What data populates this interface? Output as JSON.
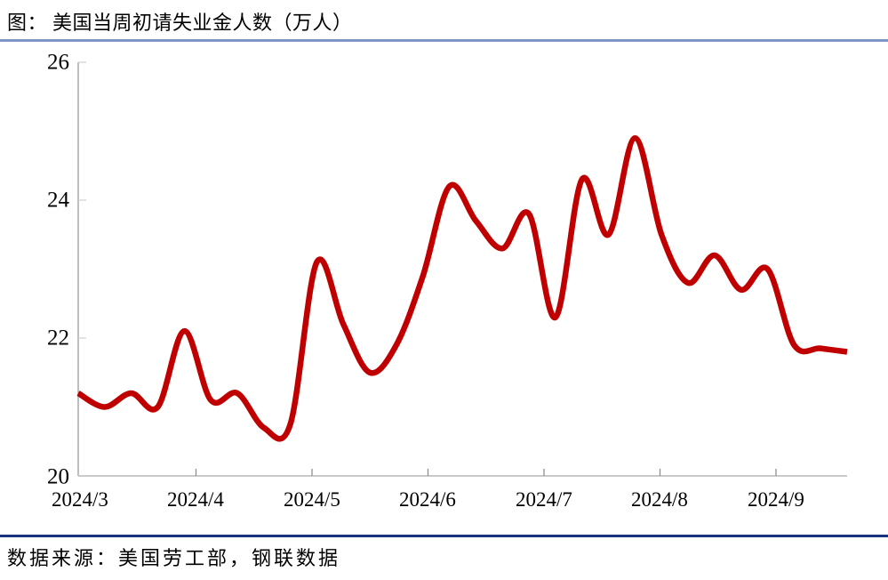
{
  "page": {
    "title": "图： 美国当周初请失业金人数（万人）",
    "source": "数据来源：美国劳工部，钢联数据"
  },
  "chart_data": {
    "type": "line",
    "title": "图： 美国当周初请失业金人数（万人）",
    "source_note": "数据来源：美国劳工部，钢联数据",
    "unit": "万人",
    "grid": false,
    "legend_position": "none",
    "ylim": [
      20,
      26
    ],
    "y_ticks": [
      26,
      24,
      22,
      20
    ],
    "y_tick_labels": [
      "26",
      "24",
      "22",
      "20"
    ],
    "x_tick_labels": [
      "2024/3",
      "2024/4",
      "2024/5",
      "2024/6",
      "2024/7",
      "2024/8",
      "2024/9"
    ],
    "series": [
      {
        "name": "美国当周初请失业金人数",
        "color": "#C00000",
        "smoothed": true,
        "x": [
          "2024/3/2",
          "2024/3/9",
          "2024/3/16",
          "2024/3/23",
          "2024/3/30",
          "2024/4/6",
          "2024/4/13",
          "2024/4/20",
          "2024/4/27",
          "2024/5/4",
          "2024/5/11",
          "2024/5/18",
          "2024/5/25",
          "2024/6/1",
          "2024/6/8",
          "2024/6/15",
          "2024/6/22",
          "2024/6/29",
          "2024/7/6",
          "2024/7/13",
          "2024/7/20",
          "2024/7/27",
          "2024/8/3",
          "2024/8/10",
          "2024/8/17",
          "2024/8/24",
          "2024/8/31",
          "2024/9/7",
          "2024/9/14",
          "2024/9/21"
        ],
        "values": [
          21.2,
          21.0,
          21.2,
          21.0,
          22.1,
          21.1,
          21.2,
          20.7,
          20.75,
          23.1,
          22.2,
          21.5,
          21.9,
          22.9,
          24.2,
          23.7,
          23.3,
          23.8,
          22.3,
          24.3,
          23.5,
          24.9,
          23.5,
          22.8,
          23.2,
          22.7,
          23.0,
          21.9,
          21.85,
          21.8
        ]
      }
    ],
    "colors": {
      "line": "#C00000",
      "title_rule": "#7E96C4",
      "footer_rule": "#17357E",
      "axis": "#9B9B9B"
    }
  }
}
